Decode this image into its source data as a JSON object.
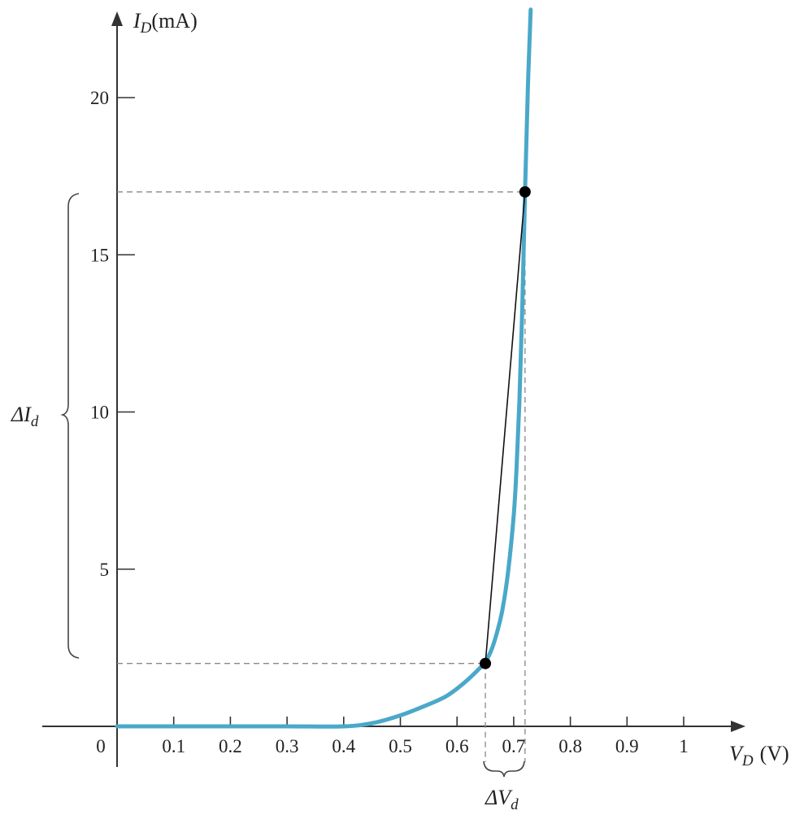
{
  "chart_data": {
    "type": "line",
    "title": "",
    "xlabel": {
      "symbol": "V",
      "subscript": "D",
      "unit": "(V)"
    },
    "ylabel": {
      "symbol": "I",
      "subscript": "D",
      "unit": "(mA)"
    },
    "xlim": [
      0,
      1.1
    ],
    "ylim": [
      0,
      23
    ],
    "x_ticks": [
      0.1,
      0.2,
      0.3,
      0.4,
      0.5,
      0.6,
      0.7,
      0.8,
      0.9,
      1
    ],
    "x_tick_labels": [
      "0.1",
      "0.2",
      "0.3",
      "0.4",
      "0.5",
      "0.6",
      "0.7",
      "0.8",
      "0.9",
      "1"
    ],
    "origin_label": "0",
    "y_ticks": [
      5,
      10,
      15,
      20
    ],
    "y_tick_labels": [
      "5",
      "10",
      "15",
      "20"
    ],
    "grid": false,
    "curve_color": "#4aa8c9",
    "series": [
      {
        "x": [
          0,
          0.1,
          0.2,
          0.3,
          0.4,
          0.45,
          0.5,
          0.55,
          0.58,
          0.6,
          0.62,
          0.64,
          0.65,
          0.66,
          0.67,
          0.68,
          0.69,
          0.7,
          0.705,
          0.71,
          0.715,
          0.72,
          0.725,
          0.73
        ],
        "y": [
          0,
          0,
          0,
          0,
          0,
          0.1,
          0.35,
          0.7,
          0.95,
          1.2,
          1.5,
          1.85,
          2.05,
          2.4,
          2.95,
          3.7,
          4.9,
          6.7,
          8.2,
          10.3,
          13.2,
          17.0,
          20.3,
          22.8
        ]
      }
    ],
    "points": [
      {
        "x": 0.65,
        "y": 2
      },
      {
        "x": 0.72,
        "y": 17
      }
    ],
    "annotations": {
      "delta_i": {
        "symbol": "ΔI",
        "subscript": "d"
      },
      "delta_v": {
        "symbol": "ΔV",
        "subscript": "d"
      }
    }
  }
}
